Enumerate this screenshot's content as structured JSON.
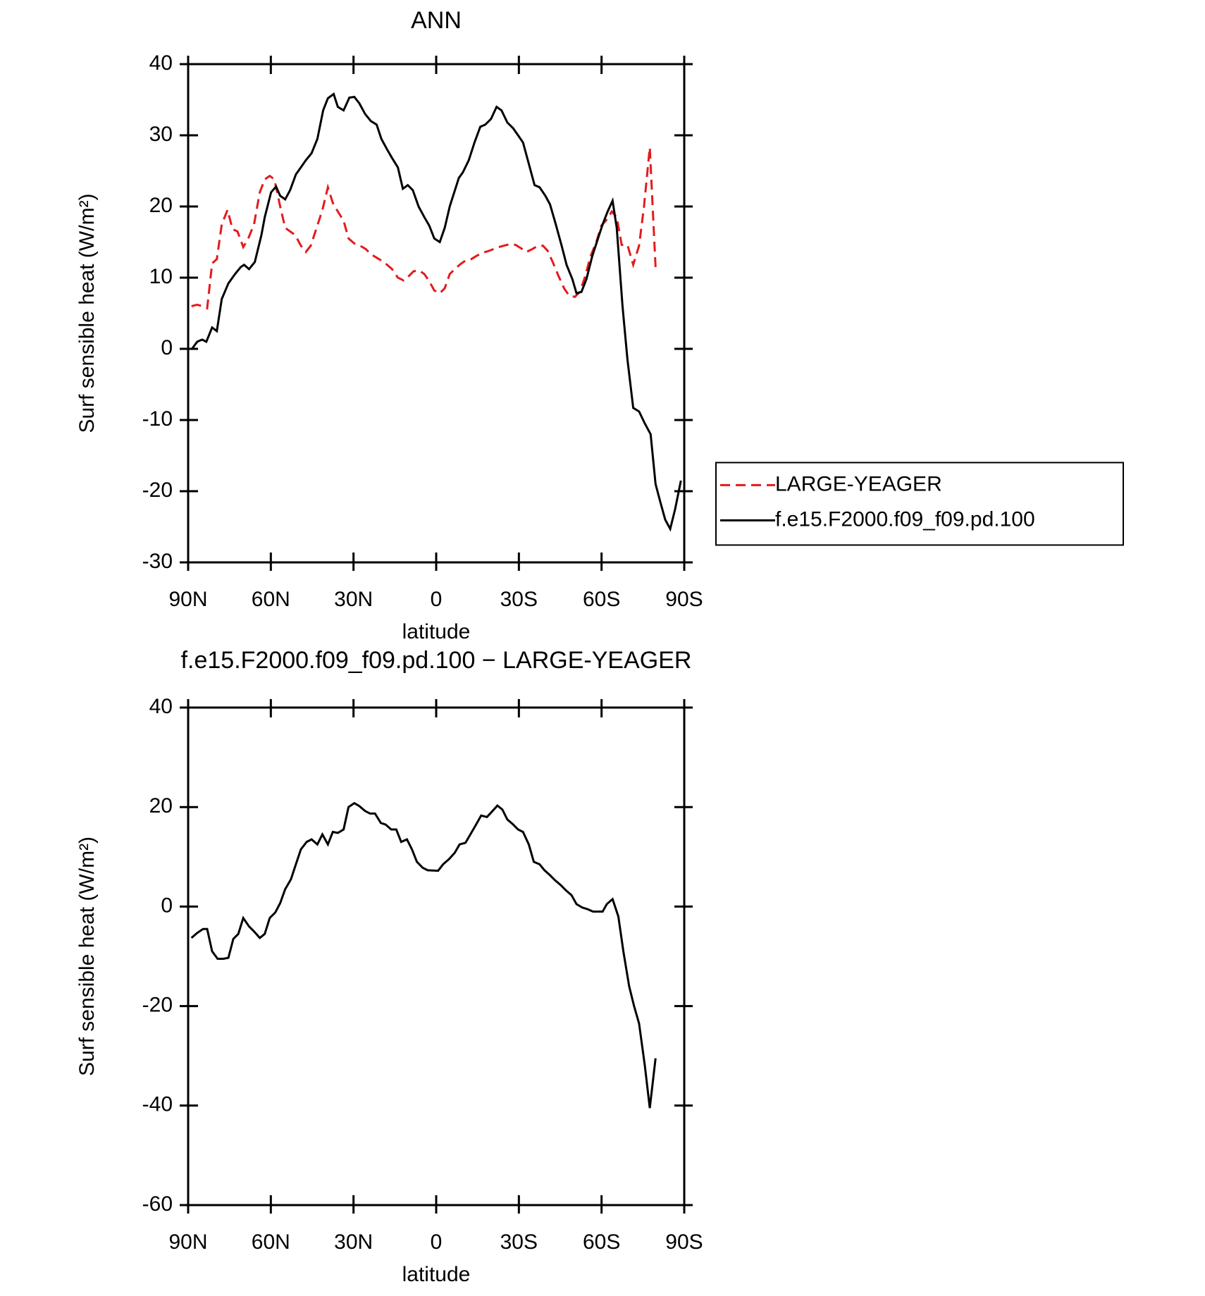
{
  "chart_data": [
    {
      "type": "line",
      "title": "ANN",
      "xlabel": "latitude",
      "ylabel": "Surf sensible heat (W/m²)",
      "xlim": [
        90,
        -90
      ],
      "xticks": [
        {
          "value": 90,
          "label": "90N"
        },
        {
          "value": 60,
          "label": "60N"
        },
        {
          "value": 30,
          "label": "30N"
        },
        0,
        {
          "value": -30,
          "label": "30S"
        },
        {
          "value": -60,
          "label": "60S"
        },
        {
          "value": -90,
          "label": "90S"
        }
      ],
      "ylim": [
        -30,
        40
      ],
      "yticks": [
        -30,
        -20,
        -10,
        0,
        10,
        20,
        30,
        40
      ],
      "legend": "outside-right",
      "series": [
        {
          "name": "LARGE-YEAGER",
          "color": "#e41a1c",
          "style": "dashed",
          "x": [
            88.8,
            86.7,
            84.9,
            83.1,
            81.3,
            79.6,
            77.8,
            75.7,
            73.9,
            72.1,
            70,
            68.2,
            66.1,
            64,
            62.2,
            60.4,
            58.7,
            56.6,
            54.8,
            53,
            51.2,
            49.1,
            47.3,
            45.5,
            43.4,
            41.3,
            39.3,
            37.5,
            35.7,
            33.6,
            31.8,
            29.7,
            27.6,
            25.5,
            23.7,
            21.6,
            19.9,
            17.8,
            16,
            13.9,
            11.8,
            10,
            8.2,
            6.1,
            4.3,
            2.5,
            0.7,
            -1.3,
            -3.1,
            -4.9,
            -7,
            -8.8,
            -10.6,
            -12.7,
            -14.8,
            -16.9,
            -18.7,
            -20.7,
            -22.8,
            -24.6,
            -26.7,
            -28.8,
            -30.9,
            -32.7,
            -34.8,
            -36.6,
            -38.7,
            -40.4,
            -42.5,
            -44.3,
            -46.4,
            -48.2,
            -50.3,
            -52.1,
            -53.9,
            -56,
            -58.1,
            -59.9,
            -62,
            -63.7,
            -65.5,
            -67.3,
            -69.4,
            -71.5,
            -73.6,
            -75.4,
            -77.5,
            -79.6
          ],
          "values": [
            6,
            6.2,
            6,
            5.7,
            12,
            12.6,
            17.5,
            19.5,
            16.8,
            16.5,
            14.3,
            15.5,
            17.5,
            22,
            23.8,
            24.3,
            23.8,
            20,
            17,
            16.5,
            16,
            14.5,
            13.6,
            14.5,
            17,
            19.5,
            22.7,
            20.5,
            19.3,
            18,
            15.5,
            14.8,
            14.5,
            14,
            13.3,
            12.8,
            12.4,
            11.8,
            11.2,
            10,
            9.6,
            10.2,
            10.9,
            11,
            10.5,
            9.5,
            8.2,
            7.8,
            8.5,
            10.5,
            11.3,
            11.9,
            12.4,
            12.6,
            13.1,
            13.5,
            13.7,
            14,
            14.3,
            14.5,
            14.7,
            14.6,
            14.1,
            13.6,
            14,
            14.4,
            14.5,
            13.8,
            12,
            10.3,
            8.5,
            7.5,
            7.3,
            8,
            10,
            13,
            15,
            17.3,
            18.2,
            19.3,
            18.5,
            14.6,
            14.6,
            11.8,
            14.5,
            20,
            28.3,
            11.5
          ]
        },
        {
          "name": "f.e15.F2000.f09_f09.pd.100",
          "color": "#000000",
          "style": "solid",
          "x": [
            88.8,
            86.7,
            84.9,
            83.4,
            81.3,
            79.6,
            77.8,
            75.4,
            73,
            70.9,
            69.7,
            67.9,
            65.8,
            63.4,
            62.2,
            59.9,
            58.1,
            56.6,
            54.8,
            53,
            50.9,
            49.1,
            47.3,
            45.2,
            43.1,
            41,
            39.3,
            37.2,
            35.7,
            33.6,
            31.5,
            29.7,
            27.9,
            25.8,
            23.7,
            21.6,
            19.9,
            17.8,
            16,
            13.9,
            12.1,
            10.3,
            8.5,
            6.4,
            4.3,
            2.5,
            0.7,
            -1.3,
            -3.1,
            -4.9,
            -8.2,
            -9.7,
            -11.8,
            -13.9,
            -16,
            -17.8,
            -19.9,
            -21.9,
            -23.7,
            -25.8,
            -27.9,
            -29.7,
            -31.5,
            -33.6,
            -35.7,
            -37.5,
            -39.6,
            -41.3,
            -43.4,
            -45.5,
            -47.3,
            -49.4,
            -50.9,
            -52.7,
            -54.5,
            -56.6,
            -58.7,
            -60.4,
            -62.2,
            -64,
            -65.5,
            -67.6,
            -69.4,
            -71.5,
            -73.6,
            -75.7,
            -77.8,
            -79.6,
            -81.3,
            -83.1,
            -84.9,
            -86.7,
            -88.8
          ],
          "values": [
            -0.1,
            1,
            1.3,
            1,
            3,
            2.5,
            7,
            9.2,
            10.5,
            11.5,
            11.8,
            11.2,
            12.2,
            16,
            18.5,
            22,
            22.8,
            21.5,
            21,
            22.3,
            24.5,
            25.5,
            26.5,
            27.5,
            29.5,
            33.5,
            35.2,
            35.8,
            34,
            33.5,
            35.3,
            35.4,
            34.5,
            33,
            32,
            31.5,
            29.5,
            28,
            26.8,
            25.5,
            22.5,
            23,
            22.3,
            20,
            18.5,
            17.3,
            15.5,
            15,
            17,
            20,
            24,
            24.8,
            26.5,
            29,
            31.2,
            31.5,
            32.3,
            34,
            33.5,
            31.8,
            31,
            30,
            29,
            26,
            23,
            22.7,
            21.5,
            20.3,
            17.5,
            14.5,
            11.8,
            9.8,
            7.8,
            8,
            9.8,
            13,
            15.5,
            17.5,
            19.3,
            20.8,
            17,
            6,
            -1.5,
            -8.3,
            -8.8,
            -10.5,
            -12,
            -19,
            -21.5,
            -24,
            -25.3,
            -22.5,
            -18.5
          ]
        }
      ]
    },
    {
      "type": "line",
      "title": "f.e15.F2000.f09_f09.pd.100 − LARGE-YEAGER",
      "xlabel": "latitude",
      "ylabel": "Surf sensible heat (W/m²)",
      "xlim": [
        90,
        -90
      ],
      "xticks": [
        {
          "value": 90,
          "label": "90N"
        },
        {
          "value": 60,
          "label": "60N"
        },
        {
          "value": 30,
          "label": "30N"
        },
        0,
        {
          "value": -30,
          "label": "30S"
        },
        {
          "value": -60,
          "label": "60S"
        },
        {
          "value": -90,
          "label": "90S"
        }
      ],
      "ylim": [
        -60,
        40
      ],
      "yticks": [
        -60,
        -40,
        -20,
        0,
        20,
        40
      ],
      "series": [
        {
          "color": "#000000",
          "style": "solid",
          "x": [
            88.8,
            86.7,
            84.6,
            83.1,
            81.3,
            79.3,
            77.2,
            75.4,
            73.6,
            71.8,
            70,
            67.9,
            66.1,
            64,
            62.2,
            60.4,
            58.4,
            56.6,
            54.8,
            52.7,
            50.9,
            49.1,
            47,
            45.2,
            43.1,
            41.3,
            39.3,
            37.5,
            35.7,
            33.6,
            31.8,
            29.7,
            27.9,
            25.8,
            24,
            22.2,
            20.1,
            18.4,
            16.3,
            14.5,
            12.7,
            10.6,
            8.8,
            7,
            4.9,
            3.1,
            -0.7,
            -2.5,
            -4.6,
            -6.7,
            -8.5,
            -10.6,
            -12.4,
            -14.5,
            -16.3,
            -18.4,
            -20.1,
            -22.2,
            -24,
            -25.8,
            -27.9,
            -29.7,
            -31.5,
            -33.6,
            -35.4,
            -37.5,
            -39.3,
            -41.3,
            -43.1,
            -45.2,
            -47,
            -49.1,
            -50.9,
            -53,
            -54.8,
            -56.9,
            -60.4,
            -61.9,
            -64,
            -66.1,
            -67.9,
            -70,
            -71.8,
            -73.6,
            -75.7,
            -77.5,
            -79.6
          ],
          "values": [
            -6.3,
            -5.3,
            -4.5,
            -4.5,
            -9,
            -10.5,
            -10.5,
            -10.3,
            -6.5,
            -5.5,
            -2.3,
            -4,
            -5,
            -6.3,
            -5.5,
            -2.3,
            -1.2,
            0.7,
            3.5,
            5.5,
            8.5,
            11.5,
            13,
            13.5,
            12.5,
            14.5,
            12.5,
            15,
            14.8,
            15.5,
            20,
            20.8,
            20.2,
            19.2,
            18.7,
            18.7,
            16.8,
            16.5,
            15.5,
            15.5,
            13,
            13.5,
            11.5,
            9,
            7.8,
            7.3,
            7.2,
            8.5,
            9.5,
            10.8,
            12.5,
            12.8,
            14.5,
            16.5,
            18.3,
            18,
            19,
            20.3,
            19.5,
            17.5,
            16.5,
            15.5,
            15,
            12.5,
            9,
            8.5,
            7.3,
            6.3,
            5.3,
            4.3,
            3.3,
            2.3,
            0.5,
            -0.2,
            -0.5,
            -1,
            -1,
            0.5,
            1.5,
            -2,
            -9,
            -16,
            -20,
            -23.5,
            -32,
            -40.5,
            -30.5
          ]
        }
      ]
    }
  ]
}
